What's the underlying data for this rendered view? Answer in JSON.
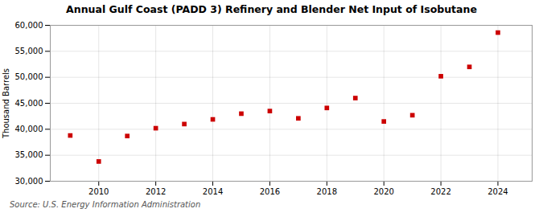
{
  "chart_data": {
    "type": "scatter",
    "title": "Annual Gulf Coast (PADD 3) Refinery and Blender Net Input of Isobutane",
    "ylabel": "Thousand Barrels",
    "source": "Source: U.S. Energy Information Administration",
    "x": [
      2009,
      2010,
      2011,
      2012,
      2013,
      2014,
      2015,
      2016,
      2017,
      2018,
      2019,
      2020,
      2021,
      2022,
      2023,
      2024
    ],
    "values": [
      38800,
      33800,
      38700,
      40200,
      41000,
      41900,
      43000,
      43500,
      42100,
      44100,
      46000,
      41500,
      42700,
      50200,
      52000,
      58600
    ],
    "color": "#cc0000",
    "marker": "square",
    "xlim": [
      2008.3,
      2025.2
    ],
    "xticks": [
      2010,
      2012,
      2014,
      2016,
      2018,
      2020,
      2022,
      2024
    ],
    "ylim": [
      30000,
      60000
    ],
    "yticks": [
      {
        "value": 30000,
        "label": "30,000"
      },
      {
        "value": 35000,
        "label": "35,000"
      },
      {
        "value": 40000,
        "label": "40,000"
      },
      {
        "value": 45000,
        "label": "45,000"
      },
      {
        "value": 50000,
        "label": "50,000"
      },
      {
        "value": 55000,
        "label": "55,000"
      },
      {
        "value": 60000,
        "label": "60,000"
      }
    ],
    "grid": true
  }
}
